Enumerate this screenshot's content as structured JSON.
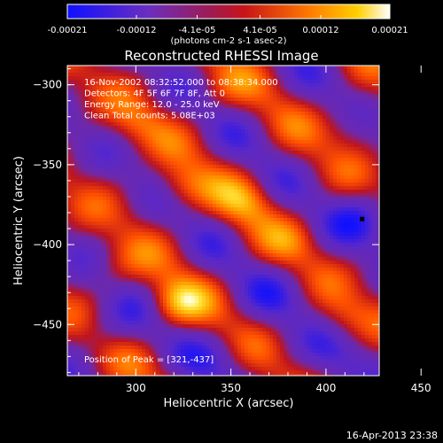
{
  "chart_data": {
    "type": "heatmap",
    "title": "Reconstructed RHESSI Image",
    "xlabel": "Heliocentric X (arcsec)",
    "ylabel": "Heliocentric Y (arcsec)",
    "xlim": [
      264,
      428
    ],
    "ylim": [
      -482,
      -288
    ],
    "xticks": [
      300,
      350,
      400,
      450
    ],
    "yticks": [
      -300,
      -350,
      -400,
      -450
    ],
    "colorbar": {
      "min": -0.00021,
      "max": 0.00021,
      "tick_labels": [
        "-0.00021",
        "-0.00012",
        "-4.1e-05",
        "4.1e-05",
        "0.00012",
        "0.00021"
      ],
      "unit_label": "(photons cm-2 s-1 asec-2)"
    },
    "annotations": [
      "16-Nov-2002 08:32:52.000 to 08:38:34.000",
      "Detectors: 4F 5F 6F 7F 8F, Att 0",
      "Energy Range: 12.0 - 25.0 keV",
      "Clean     Total counts: 5.08E+03"
    ],
    "peak_label": "Position of Peak = [321,-437]",
    "marker": {
      "x": 419,
      "y": -384
    },
    "colors": {
      "low": "#0000ff",
      "mid_low": "#6b2fb8",
      "mid": "#b0102a",
      "mid_high": "#ff8000",
      "high": "#ffffff"
    }
  },
  "timestamp": "16-Apr-2013 23:38"
}
